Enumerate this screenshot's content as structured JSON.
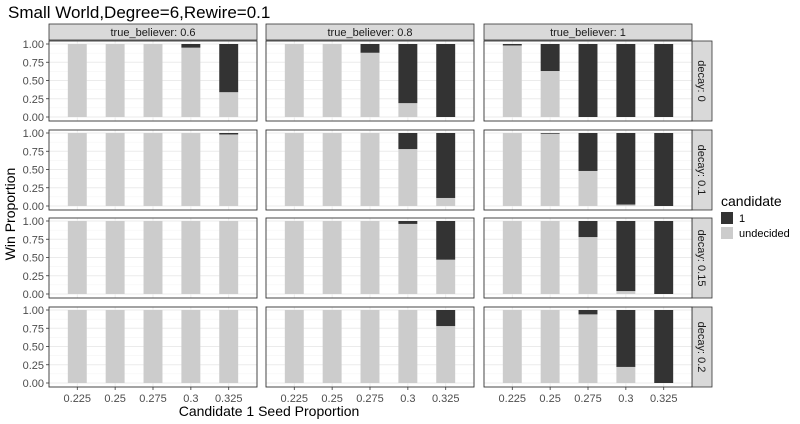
{
  "chart_data": {
    "type": "bar",
    "stacked": true,
    "title": "Small World,Degree=6,Rewire=0.1",
    "xlabel": "Candidate 1 Seed Proportion",
    "ylabel": "Win Proportion",
    "categories": [
      "0.225",
      "0.25",
      "0.275",
      "0.3",
      "0.325"
    ],
    "y_ticks": [
      "0.00",
      "0.25",
      "0.50",
      "0.75",
      "1.00"
    ],
    "ylim": [
      0,
      1
    ],
    "grid": true,
    "col_facets": [
      "true_believer: 0.6",
      "true_believer: 0.8",
      "true_believer: 1"
    ],
    "row_facets": [
      "decay: 0",
      "decay: 0.1",
      "decay: 0.15",
      "decay: 0.2"
    ],
    "legend": {
      "title": "candidate",
      "position": "right",
      "items": [
        {
          "label": "1",
          "color": "#333333"
        },
        {
          "label": "undecided",
          "color": "#cccccc"
        }
      ]
    },
    "panels": [
      [
        {
          "1": [
            0,
            0,
            0,
            0.05,
            0.66
          ]
        },
        {
          "1": [
            0,
            0,
            0.12,
            0.81,
            1.0
          ]
        },
        {
          "1": [
            0.02,
            0.37,
            1.0,
            1.0,
            1.0
          ]
        }
      ],
      [
        {
          "1": [
            0,
            0,
            0,
            0,
            0.02
          ]
        },
        {
          "1": [
            0,
            0,
            0,
            0.22,
            0.89
          ]
        },
        {
          "1": [
            0,
            0.01,
            0.52,
            0.98,
            1.0
          ]
        }
      ],
      [
        {
          "1": [
            0,
            0,
            0,
            0,
            0
          ]
        },
        {
          "1": [
            0,
            0,
            0,
            0.04,
            0.53
          ]
        },
        {
          "1": [
            0,
            0,
            0.22,
            0.96,
            1.0
          ]
        }
      ],
      [
        {
          "1": [
            0,
            0,
            0,
            0,
            0
          ]
        },
        {
          "1": [
            0,
            0,
            0,
            0,
            0.22
          ]
        },
        {
          "1": [
            0,
            0,
            0.06,
            0.78,
            1.0
          ]
        }
      ]
    ]
  }
}
